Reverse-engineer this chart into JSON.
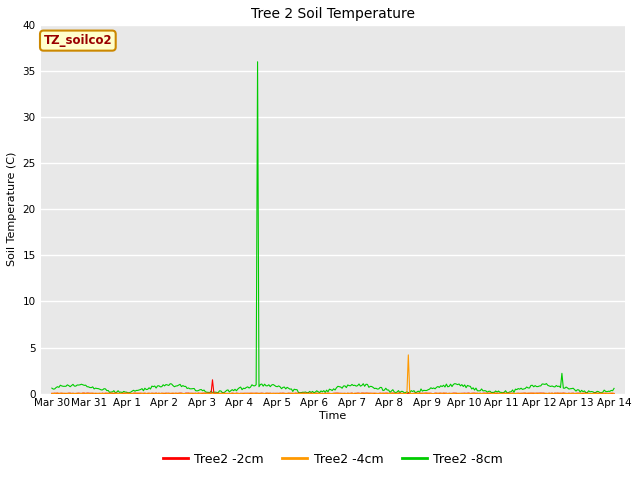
{
  "title": "Tree 2 Soil Temperature",
  "ylabel": "Soil Temperature (C)",
  "xlabel": "Time",
  "annotation_text": "TZ_soilco2",
  "annotation_bg": "#ffffcc",
  "annotation_border": "#cc8800",
  "annotation_text_color": "#990000",
  "ylim": [
    0,
    40
  ],
  "yticks": [
    0,
    5,
    10,
    15,
    20,
    25,
    30,
    35,
    40
  ],
  "fig_bg_color": "#ffffff",
  "plot_bg": "#e8e8e8",
  "legend_labels": [
    "Tree2 -2cm",
    "Tree2 -4cm",
    "Tree2 -8cm"
  ],
  "legend_colors": [
    "#ff0000",
    "#ff9900",
    "#00cc00"
  ],
  "xtick_labels": [
    "Mar 30",
    "Mar 31",
    "Apr 1",
    "Apr 2",
    "Apr 3",
    "Apr 4",
    "Apr 5",
    "Apr 6",
    "Apr 7",
    "Apr 8",
    "Apr 9",
    "Apr 10",
    "Apr 11",
    "Apr 12",
    "Apr 13",
    "Apr 14"
  ],
  "red_spike_day": 4.3,
  "red_spike_val": 1.5,
  "orange_spike_day": 9.5,
  "orange_spike_val": 4.2,
  "green_spike_day": 5.5,
  "green_spike_val": 36.0,
  "green_spike2_day": 13.6,
  "green_spike2_val": 2.2,
  "green_base_seed": 123,
  "num_points": 400
}
